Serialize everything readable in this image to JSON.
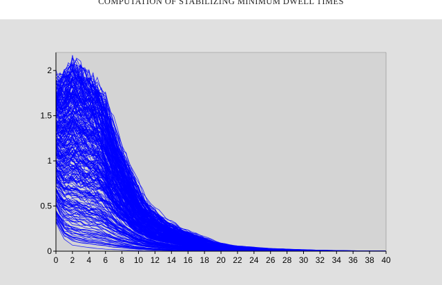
{
  "header": {
    "running_head": "COMPUTATION OF STABILIZING MINIMUM DWELL TIMES"
  },
  "colors": {
    "figure_background": "#e0e0e0",
    "plot_background": "#d4d4d4",
    "series_color": "#0000ff",
    "axis_color": "#000000"
  },
  "chart_data": {
    "type": "line",
    "title": "",
    "xlabel": "",
    "ylabel": "",
    "xlim": [
      0,
      40
    ],
    "ylim": [
      0,
      2.2
    ],
    "x_ticks": [
      "0",
      "2",
      "4",
      "6",
      "8",
      "10",
      "12",
      "14",
      "16",
      "18",
      "20",
      "22",
      "24",
      "26",
      "28",
      "30",
      "32",
      "34",
      "36",
      "38",
      "40"
    ],
    "y_ticks": [
      "0",
      "0.5",
      "1",
      "1.5",
      "2"
    ],
    "grid": false,
    "legend": "none",
    "series_description_count": 300,
    "trajectory_envelope": {
      "x": [
        0,
        1,
        2,
        3,
        4,
        5,
        6,
        7,
        8,
        10,
        12,
        14,
        16,
        18,
        20,
        24,
        28,
        32,
        36,
        40
      ],
      "upper": [
        1.9,
        1.95,
        2.1,
        2.02,
        1.92,
        1.85,
        1.65,
        1.3,
        1.05,
        0.6,
        0.38,
        0.26,
        0.18,
        0.1,
        0.06,
        0.03,
        0.015,
        0.006,
        0.003,
        0.0
      ],
      "median": [
        1.1,
        1.05,
        0.98,
        0.9,
        0.8,
        0.66,
        0.52,
        0.4,
        0.3,
        0.17,
        0.1,
        0.06,
        0.035,
        0.02,
        0.012,
        0.005,
        0.002,
        0.001,
        0.0,
        0.0
      ],
      "lower": [
        0.3,
        0.12,
        0.06,
        0.04,
        0.03,
        0.02,
        0.015,
        0.01,
        0.01,
        0.005,
        0.002,
        0.001,
        0.0,
        0.0,
        0.0,
        0.0,
        0.0,
        0.0,
        0.0,
        0.0
      ]
    }
  }
}
